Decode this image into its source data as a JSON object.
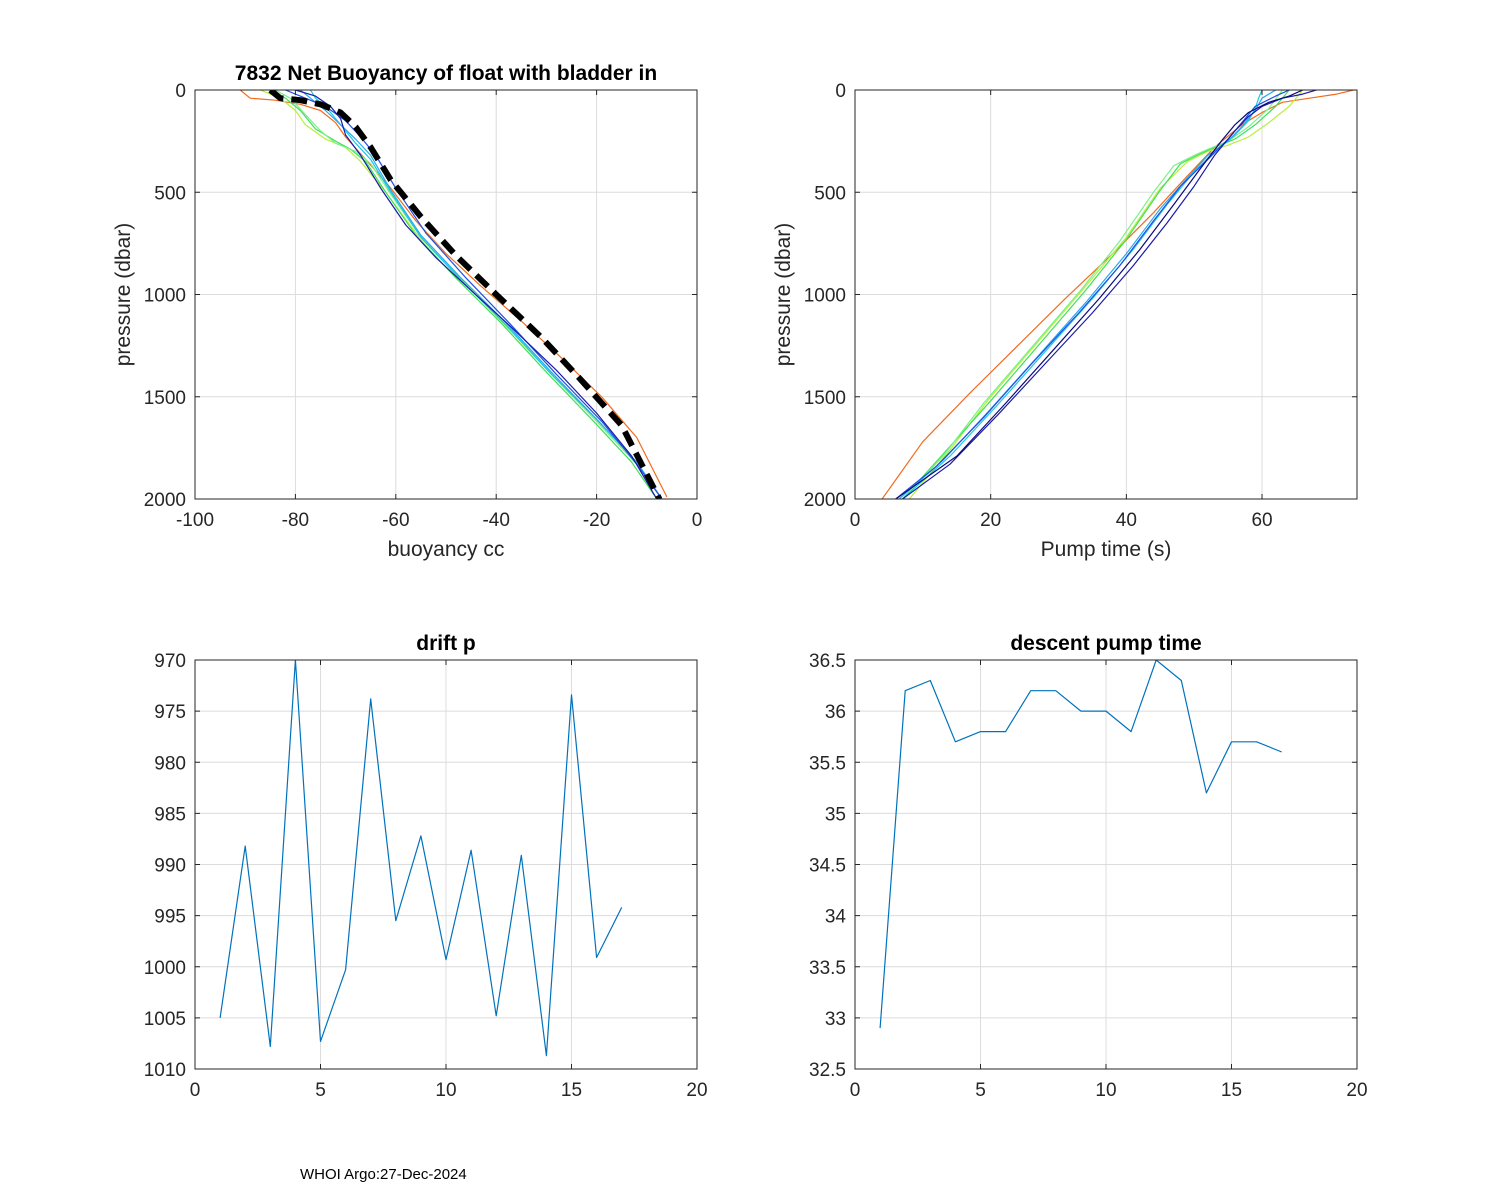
{
  "footer": "WHOI Argo:27-Dec-2024",
  "chart_data": [
    {
      "id": "buoyancy",
      "type": "line",
      "title": "7832 Net Buoyancy of float with bladder in",
      "xlabel": "buoyancy cc",
      "ylabel": "pressure (dbar)",
      "xlim": [
        -100,
        0
      ],
      "ylim": [
        0,
        2000
      ],
      "y_reversed": true,
      "xticks": [
        -100,
        -80,
        -60,
        -40,
        -20,
        0
      ],
      "yticks": [
        0,
        500,
        1000,
        1500,
        2000
      ],
      "grid": true,
      "series": [
        {
          "name": "profile-orange",
          "color": "#f26b1d",
          "x": [
            -91,
            -89,
            -84,
            -79,
            -75,
            -72,
            -70,
            -66,
            -61,
            -56,
            -50,
            -43,
            -35,
            -27,
            -19,
            -12,
            -6
          ],
          "y": [
            0,
            40,
            50,
            70,
            100,
            160,
            230,
            340,
            480,
            640,
            800,
            960,
            1130,
            1310,
            1500,
            1700,
            1990
          ]
        },
        {
          "name": "profile-yellowgreen",
          "color": "#b6f03a",
          "x": [
            -87,
            -83,
            -80,
            -78,
            -74,
            -70,
            -67,
            -62,
            -56,
            -48,
            -39,
            -29,
            -20,
            -12,
            -7
          ],
          "y": [
            0,
            40,
            100,
            170,
            240,
            280,
            350,
            500,
            700,
            900,
            1130,
            1390,
            1620,
            1830,
            2000
          ]
        },
        {
          "name": "profile-green",
          "color": "#3ee05a",
          "x": [
            -85,
            -82,
            -79,
            -76,
            -72,
            -69,
            -66,
            -62,
            -56,
            -48,
            -39,
            -30,
            -21,
            -13,
            -8
          ],
          "y": [
            0,
            40,
            100,
            190,
            250,
            290,
            350,
            500,
            710,
            920,
            1140,
            1380,
            1610,
            1820,
            2000
          ]
        },
        {
          "name": "profile-lightgreen",
          "color": "#7af08a",
          "x": [
            -84,
            -81,
            -78,
            -75,
            -72,
            -68,
            -65,
            -61,
            -55,
            -47,
            -38,
            -29,
            -20,
            -12,
            -7
          ],
          "y": [
            0,
            40,
            120,
            200,
            260,
            300,
            360,
            510,
            720,
            930,
            1150,
            1390,
            1620,
            1830,
            2000
          ]
        },
        {
          "name": "profile-cyan",
          "color": "#19c8e6",
          "x": [
            -77,
            -76,
            -74,
            -72,
            -70,
            -68,
            -65,
            -61,
            -55,
            -47,
            -38,
            -29,
            -20,
            -12,
            -7
          ],
          "y": [
            0,
            40,
            80,
            140,
            200,
            260,
            340,
            500,
            720,
            930,
            1150,
            1390,
            1610,
            1820,
            2000
          ]
        },
        {
          "name": "profile-skyblue",
          "color": "#2aa8f0",
          "x": [
            -79,
            -77,
            -74,
            -71,
            -68,
            -65,
            -61,
            -55,
            -47,
            -38,
            -29,
            -20,
            -12,
            -7
          ],
          "y": [
            0,
            40,
            100,
            170,
            240,
            320,
            490,
            710,
            920,
            1140,
            1380,
            1610,
            1820,
            2000
          ]
        },
        {
          "name": "profile-blue",
          "color": "#1f4fe0",
          "x": [
            -82,
            -78,
            -74,
            -70,
            -67,
            -64,
            -60,
            -54,
            -46,
            -37,
            -28,
            -19,
            -12,
            -7
          ],
          "y": [
            0,
            40,
            80,
            150,
            230,
            320,
            480,
            700,
            920,
            1150,
            1390,
            1620,
            1830,
            2000
          ]
        },
        {
          "name": "profile-navy",
          "color": "#1b1ba8",
          "x": [
            -80,
            -76,
            -73,
            -71,
            -70,
            -67,
            -63,
            -58,
            -52,
            -45,
            -37,
            -28,
            -20,
            -13,
            -8
          ],
          "y": [
            0,
            30,
            80,
            140,
            220,
            320,
            480,
            660,
            820,
            980,
            1160,
            1370,
            1580,
            1790,
            2000
          ]
        },
        {
          "name": "mean-dashed",
          "color": "#000000",
          "dashed": true,
          "x": [
            -85,
            -83,
            -79,
            -75,
            -71,
            -68,
            -65,
            -61,
            -55,
            -48,
            -40,
            -31,
            -23,
            -15,
            -7.5
          ],
          "y": [
            0,
            40,
            50,
            70,
            110,
            180,
            280,
            440,
            620,
            810,
            1000,
            1210,
            1420,
            1640,
            2000
          ]
        }
      ]
    },
    {
      "id": "pumptime",
      "type": "line",
      "title": "",
      "xlabel": "Pump time (s)",
      "ylabel": "pressure (dbar)",
      "xlim": [
        0,
        74
      ],
      "ylim": [
        0,
        2000
      ],
      "y_reversed": true,
      "xticks": [
        0,
        20,
        40,
        60
      ],
      "yticks": [
        0,
        500,
        1000,
        1500,
        2000
      ],
      "grid": true,
      "series": [
        {
          "name": "profile-orange",
          "color": "#f26b1d",
          "x": [
            73.5,
            71,
            67,
            63,
            60,
            57,
            53,
            49,
            44,
            38,
            31,
            24,
            17,
            10,
            4
          ],
          "y": [
            0,
            20,
            40,
            60,
            110,
            170,
            280,
            420,
            600,
            800,
            1020,
            1250,
            1480,
            1720,
            2000
          ]
        },
        {
          "name": "profile-yellowgreen",
          "color": "#b6f03a",
          "x": [
            66,
            64,
            61,
            58,
            55,
            52,
            49,
            45,
            40,
            34,
            27,
            20,
            14,
            8
          ],
          "y": [
            0,
            80,
            160,
            230,
            270,
            300,
            350,
            480,
            720,
            960,
            1230,
            1500,
            1760,
            2000
          ]
        },
        {
          "name": "profile-green",
          "color": "#3ee05a",
          "x": [
            64,
            62,
            59,
            56,
            53,
            51,
            48,
            45,
            40,
            34,
            27,
            20,
            13,
            7
          ],
          "y": [
            0,
            80,
            170,
            240,
            280,
            310,
            360,
            490,
            730,
            980,
            1250,
            1520,
            1780,
            2000
          ]
        },
        {
          "name": "profile-lightgreen",
          "color": "#7af08a",
          "x": [
            63,
            61,
            58,
            55,
            52,
            50,
            47,
            44,
            39,
            33,
            26,
            19,
            13,
            7
          ],
          "y": [
            0,
            90,
            180,
            250,
            290,
            320,
            370,
            500,
            740,
            990,
            1260,
            1530,
            1790,
            2000
          ]
        },
        {
          "name": "profile-cyan",
          "color": "#19c8e6",
          "x": [
            60,
            59.5,
            59,
            58,
            56,
            53,
            50,
            46,
            41,
            35,
            28,
            21,
            14,
            7
          ],
          "y": [
            0,
            40,
            90,
            150,
            220,
            300,
            400,
            560,
            780,
            1020,
            1280,
            1540,
            1790,
            2000
          ]
        },
        {
          "name": "profile-skyblue",
          "color": "#2aa8f0",
          "x": [
            62,
            60,
            59,
            57,
            55,
            52,
            49,
            45,
            40,
            34,
            27,
            20,
            13,
            6.5
          ],
          "y": [
            0,
            40,
            100,
            180,
            250,
            320,
            430,
            580,
            800,
            1040,
            1300,
            1560,
            1810,
            2000
          ]
        },
        {
          "name": "profile-blue",
          "color": "#1f4fe0",
          "x": [
            64,
            62,
            59,
            57,
            55,
            52,
            48,
            44,
            39,
            33,
            26,
            19,
            12,
            6
          ],
          "y": [
            0,
            30,
            80,
            160,
            240,
            340,
            470,
            640,
            860,
            1090,
            1340,
            1600,
            1840,
            2000
          ]
        },
        {
          "name": "profile-navy",
          "color": "#1b1ba8",
          "x": [
            68,
            66,
            63,
            60,
            58,
            56,
            53,
            50,
            46,
            41,
            35,
            28,
            21,
            14,
            7
          ],
          "y": [
            0,
            20,
            40,
            80,
            130,
            200,
            320,
            470,
            650,
            860,
            1090,
            1340,
            1590,
            1830,
            2000
          ]
        },
        {
          "name": "profile-darkblue",
          "color": "#0a0a7a",
          "x": [
            66,
            64,
            61,
            58,
            56,
            54,
            51,
            47,
            42,
            36,
            29,
            22,
            15,
            6
          ],
          "y": [
            0,
            30,
            60,
            110,
            170,
            250,
            380,
            560,
            780,
            1020,
            1280,
            1540,
            1790,
            2000
          ]
        }
      ]
    },
    {
      "id": "driftp",
      "type": "line",
      "title": "drift p",
      "xlabel": "",
      "ylabel": "",
      "xlim": [
        0,
        20
      ],
      "ylim": [
        970,
        1010
      ],
      "y_reversed": true,
      "xticks": [
        0,
        5,
        10,
        15,
        20
      ],
      "yticks": [
        970,
        975,
        980,
        985,
        990,
        995,
        1000,
        1005,
        1010
      ],
      "grid": true,
      "series": [
        {
          "name": "drift-p",
          "color": "#0072bd",
          "x": [
            1,
            2,
            3,
            4,
            5,
            6,
            7,
            8,
            9,
            10,
            11,
            12,
            13,
            14,
            15,
            16,
            17
          ],
          "y": [
            1005,
            988.2,
            1007.8,
            970,
            1007.3,
            1000.3,
            973.8,
            995.5,
            987.2,
            999.3,
            988.6,
            1004.8,
            989.1,
            1008.7,
            973.4,
            999.1,
            994.2
          ]
        }
      ]
    },
    {
      "id": "descentpump",
      "type": "line",
      "title": "descent pump time",
      "xlabel": "",
      "ylabel": "",
      "xlim": [
        0,
        20
      ],
      "ylim": [
        32.5,
        36.5
      ],
      "y_reversed": false,
      "xticks": [
        0,
        5,
        10,
        15,
        20
      ],
      "yticks": [
        32.5,
        33,
        33.5,
        34,
        34.5,
        35,
        35.5,
        36,
        36.5
      ],
      "grid": true,
      "series": [
        {
          "name": "descent-pump-time",
          "color": "#0072bd",
          "x": [
            1,
            2,
            3,
            4,
            5,
            6,
            7,
            8,
            9,
            10,
            11,
            12,
            13,
            14,
            15,
            16,
            17
          ],
          "y": [
            32.9,
            36.2,
            36.3,
            35.7,
            35.8,
            35.8,
            36.2,
            36.2,
            36.0,
            36.0,
            35.8,
            36.5,
            36.3,
            35.2,
            35.7,
            35.7,
            35.6
          ]
        }
      ]
    }
  ]
}
